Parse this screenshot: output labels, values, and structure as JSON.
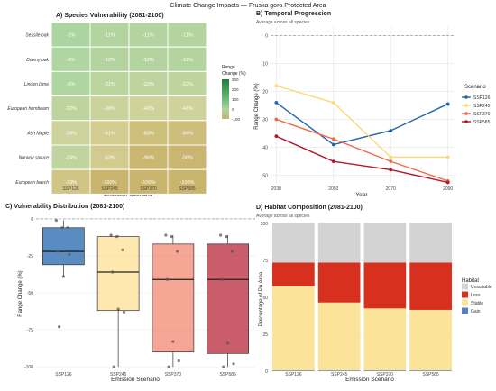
{
  "figure_title": "Climate Change Impacts — Fruska gora Protected Area",
  "colors": {
    "SSP126": "#2166ac",
    "SSP245": "#fdd876",
    "SSP370": "#ef6a4c",
    "SSP585": "#b2182b",
    "unsuitable": "#d3d3d3",
    "loss": "#d7301f",
    "stable": "#fbe39a",
    "gain": "#5b7fbf"
  },
  "chart_data": [
    {
      "panel": "A",
      "type": "heatmap",
      "title": "A) Species Vulnerability (2081-2100)",
      "xlabel": "Emission Scenario",
      "ylabel": "",
      "columns": [
        "SSP126",
        "SSP245",
        "SSP370",
        "SSP585"
      ],
      "rows": [
        "Sessile oak",
        "Downy oak",
        "Linden Lime",
        "European hornbeam",
        "Ash   Maple",
        "Norway spruce",
        "European beech"
      ],
      "values": [
        [
          -1,
          -11,
          -11,
          -11
        ],
        [
          -6,
          -12,
          -12,
          -12
        ],
        [
          -6,
          -21,
          -22,
          -22
        ],
        [
          -22,
          -36,
          -41,
          -41
        ],
        [
          -39,
          -61,
          -83,
          -84
        ],
        [
          -24,
          -63,
          -96,
          -98
        ],
        [
          -73,
          -100,
          -100,
          -100
        ]
      ],
      "cell_labels": [
        [
          "-1%",
          "-11%",
          "-11%",
          "-11%"
        ],
        [
          "-6%",
          "-12%",
          "-12%",
          "-12%"
        ],
        [
          "-6%",
          "-21%",
          "-22%",
          "-22%"
        ],
        [
          "-22%",
          "-36%",
          "-41%",
          "-41%"
        ],
        [
          "-39%",
          "-61%",
          "-83%",
          "-84%"
        ],
        [
          "-24%",
          "-63%",
          "-96%",
          "-98%"
        ],
        [
          "-73%",
          "-100%",
          "-100%",
          "-100%"
        ]
      ],
      "legend": {
        "title_line1": "Range",
        "title_line2": "Change (%)",
        "ticks": [
          "300",
          "200",
          "100",
          "0",
          "-100"
        ],
        "min": -100,
        "max": 300
      }
    },
    {
      "panel": "B",
      "type": "line",
      "title": "B) Temporal Progression",
      "subtitle": "Average across all species",
      "xlabel": "Year",
      "ylabel": "Range Change (%)",
      "x": [
        2030,
        2050,
        2070,
        2090
      ],
      "ylim": [
        -53,
        3
      ],
      "yticks": [
        0,
        -10,
        -20,
        -30,
        -40,
        -50
      ],
      "legend_title": "Scenario",
      "series": [
        {
          "name": "SSP126",
          "values": [
            -24,
            -39,
            -34,
            -24.5
          ]
        },
        {
          "name": "SSP245",
          "values": [
            -18,
            -24,
            -43.5,
            -43.5
          ]
        },
        {
          "name": "SSP370",
          "values": [
            -30,
            -37,
            -45,
            -52
          ]
        },
        {
          "name": "SSP585",
          "values": [
            -36,
            -45,
            -48,
            -52.5
          ]
        }
      ]
    },
    {
      "panel": "C",
      "type": "box",
      "title": "C) Vulnerability Distribution (2081-2100)",
      "xlabel": "Emission Scenario",
      "ylabel": "Range Change (%)",
      "categories": [
        "SSP126",
        "SSP245",
        "SSP370",
        "SSP585"
      ],
      "ylim": [
        -103,
        3
      ],
      "yticks": [
        0,
        -25,
        -50,
        -75,
        -100
      ],
      "boxes": [
        {
          "name": "SSP126",
          "q1": -31,
          "median": -22,
          "q3": -6,
          "lower_whisker": -39,
          "upper_whisker": -1,
          "outliers": [
            -73
          ]
        },
        {
          "name": "SSP245",
          "q1": -62,
          "median": -36,
          "q3": -12,
          "lower_whisker": -100,
          "upper_whisker": -11,
          "outliers": []
        },
        {
          "name": "SSP370",
          "q1": -90,
          "median": -41,
          "q3": -17,
          "lower_whisker": -100,
          "upper_whisker": -11,
          "outliers": []
        },
        {
          "name": "SSP585",
          "q1": -91,
          "median": -41,
          "q3": -17,
          "lower_whisker": -100,
          "upper_whisker": -11,
          "outliers": []
        }
      ],
      "points": [
        [
          -1,
          -6,
          -6,
          -22,
          -39,
          -24,
          -73
        ],
        [
          -11,
          -12,
          -21,
          -36,
          -61,
          -63,
          -100
        ],
        [
          -11,
          -12,
          -22,
          -41,
          -83,
          -96,
          -100
        ],
        [
          -11,
          -12,
          -22,
          -41,
          -84,
          -98,
          -100
        ]
      ]
    },
    {
      "panel": "D",
      "type": "bar",
      "title": "D) Habitat Composition (2081-2100)",
      "subtitle": "Average across all species",
      "xlabel": "Emission Scenario",
      "ylabel": "Percentage of PA Area",
      "categories": [
        "SSP126",
        "SSP245",
        "SSP370",
        "SSP585"
      ],
      "ylim": [
        0,
        100
      ],
      "yticks": [
        0,
        25,
        50,
        75,
        100
      ],
      "legend_title": "Habitat",
      "series": [
        {
          "name": "Gain",
          "values": [
            0.5,
            0.5,
            0.5,
            0.5
          ]
        },
        {
          "name": "Stable",
          "values": [
            57,
            46,
            42,
            41
          ]
        },
        {
          "name": "Loss",
          "values": [
            16,
            27,
            31,
            32
          ]
        },
        {
          "name": "Unsuitable",
          "values": [
            27,
            27,
            27,
            27
          ]
        }
      ]
    }
  ]
}
